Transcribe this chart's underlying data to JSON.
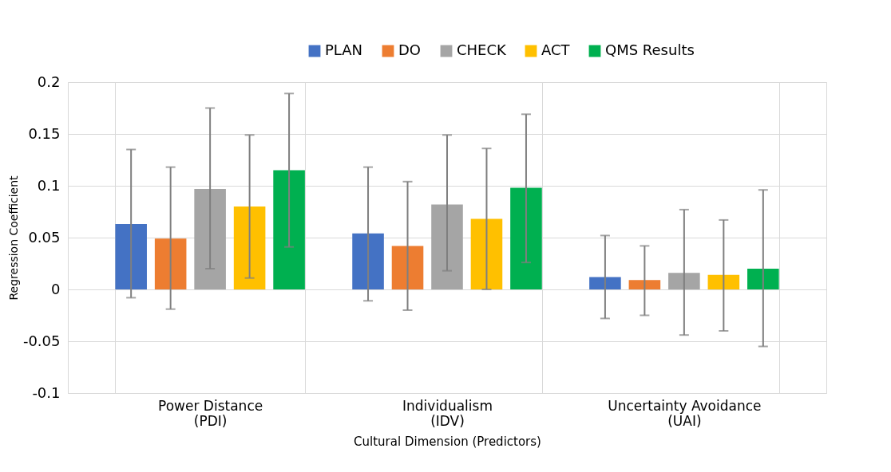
{
  "chart_data": {
    "type": "bar",
    "categories": [
      "Power Distance\n(PDI)",
      "Individualism\n(IDV)",
      "Uncertainty Avoidance\n(UAI)"
    ],
    "xlabel": "Cultural Dimension (Predictors)",
    "ylabel": "Regression Coefficient",
    "series": [
      {
        "name": "PLAN",
        "color": "#4472c4",
        "values": [
          0.063,
          0.054,
          0.012
        ],
        "errors": [
          [
            -0.008,
            0.135
          ],
          [
            -0.011,
            0.118
          ],
          [
            -0.028,
            0.052
          ]
        ]
      },
      {
        "name": "DO",
        "color": "#ed7d31",
        "values": [
          0.049,
          0.042,
          0.009
        ],
        "errors": [
          [
            -0.019,
            0.118
          ],
          [
            -0.02,
            0.104
          ],
          [
            -0.025,
            0.042
          ]
        ]
      },
      {
        "name": "CHECK",
        "color": "#a5a5a5",
        "values": [
          0.097,
          0.082,
          0.016
        ],
        "errors": [
          [
            0.02,
            0.175
          ],
          [
            0.018,
            0.149
          ],
          [
            -0.044,
            0.077
          ]
        ]
      },
      {
        "name": "ACT",
        "color": "#ffc000",
        "values": [
          0.08,
          0.068,
          0.014
        ],
        "errors": [
          [
            0.011,
            0.149
          ],
          [
            0.0,
            0.136
          ],
          [
            -0.04,
            0.067
          ]
        ]
      },
      {
        "name": "QMS Results",
        "color": "#00b050",
        "values": [
          0.115,
          0.098,
          0.02
        ],
        "errors": [
          [
            0.041,
            0.189
          ],
          [
            0.026,
            0.169
          ],
          [
            -0.055,
            0.096
          ]
        ]
      }
    ],
    "ylim": [
      -0.1,
      0.2
    ],
    "yticks": [
      -0.1,
      -0.05,
      0,
      0.05,
      0.1,
      0.15,
      0.2
    ],
    "grid": true,
    "legend": "top right"
  }
}
